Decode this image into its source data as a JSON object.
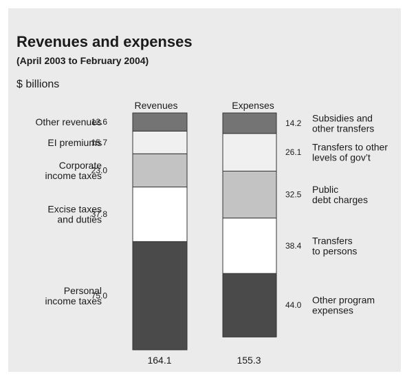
{
  "chart_data": {
    "type": "bar",
    "stacked": true,
    "title": "Revenues and expenses",
    "subtitle": "(April 2003 to February 2004)",
    "unit": "$ billions",
    "columns": [
      {
        "name": "Revenues",
        "total": "164.1",
        "segments": [
          {
            "label": [
              "Personal",
              "income taxes"
            ],
            "value": 75.0,
            "value_label": "75.0",
            "color": "#4a4a4a"
          },
          {
            "label": [
              "Excise taxes",
              "and duties"
            ],
            "value": 37.8,
            "value_label": "37.8",
            "color": "#ffffff"
          },
          {
            "label": [
              "Corporate",
              "income taxes"
            ],
            "value": 23.0,
            "value_label": "23.0",
            "color": "#c3c3c3"
          },
          {
            "label": [
              "EI premiums"
            ],
            "value": 15.7,
            "value_label": "15.7",
            "color": "#f0f0f0"
          },
          {
            "label": [
              "Other revenues"
            ],
            "value": 12.6,
            "value_label": "12.6",
            "color": "#747474"
          }
        ]
      },
      {
        "name": "Expenses",
        "total": "155.3",
        "segments": [
          {
            "label": [
              "Other program",
              "expenses"
            ],
            "value": 44.0,
            "value_label": "44.0",
            "color": "#4a4a4a"
          },
          {
            "label": [
              "Transfers",
              "to persons"
            ],
            "value": 38.4,
            "value_label": "38.4",
            "color": "#ffffff"
          },
          {
            "label": [
              "Public",
              "debt charges"
            ],
            "value": 32.5,
            "value_label": "32.5",
            "color": "#c3c3c3"
          },
          {
            "label": [
              "Transfers to other",
              "levels of gov’t"
            ],
            "value": 26.1,
            "value_label": "26.1",
            "color": "#f0f0f0"
          },
          {
            "label": [
              "Subsidies and",
              "other transfers"
            ],
            "value": 14.2,
            "value_label": "14.2",
            "color": "#747474"
          }
        ]
      }
    ]
  }
}
